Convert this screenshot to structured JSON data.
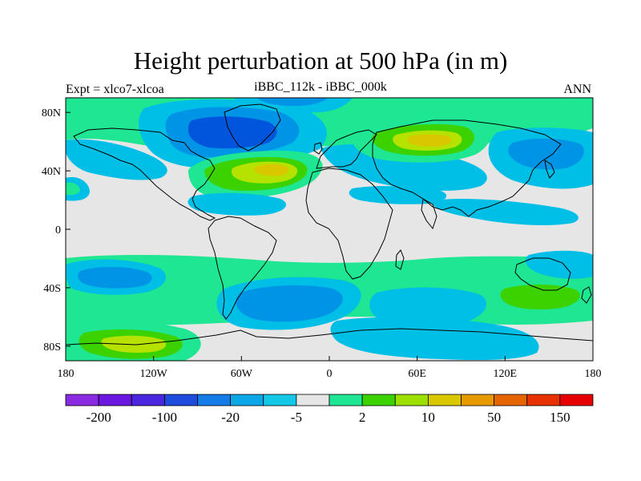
{
  "title": "Height perturbation at 500 hPa (in m)",
  "subtitle_left": "Expt = xlco7-xlcoa",
  "subtitle_center": "iBBC_112k - iBBC_000k",
  "subtitle_right": "ANN",
  "map": {
    "lon_ticks": [
      "180",
      "120W",
      "60W",
      "0",
      "60E",
      "120E",
      "180"
    ],
    "lat_ticks": [
      "80N",
      "40N",
      "0",
      "40S",
      "80S"
    ]
  },
  "colors": {
    "land_fill": "#e6e6e6",
    "coast": "#000000",
    "d1": "#00bfe6",
    "d2": "#0094e6",
    "d3": "#0055dd",
    "p1": "#1ee692",
    "p2": "#3cd200",
    "p3": "#b5e200",
    "p4": "#d9c800"
  },
  "colorbar": {
    "colors": [
      "#8a2be2",
      "#6a18e0",
      "#4a26dc",
      "#1f4cdc",
      "#137ce6",
      "#0aa6e6",
      "#12c8e6",
      "#e6e6e6",
      "#1ee692",
      "#3cd200",
      "#9be000",
      "#d9c800",
      "#e69a00",
      "#e66400",
      "#e63200",
      "#e60000"
    ],
    "labels": [
      "-200",
      "-100",
      "-20",
      "-5",
      "2",
      "10",
      "50",
      "150"
    ]
  }
}
